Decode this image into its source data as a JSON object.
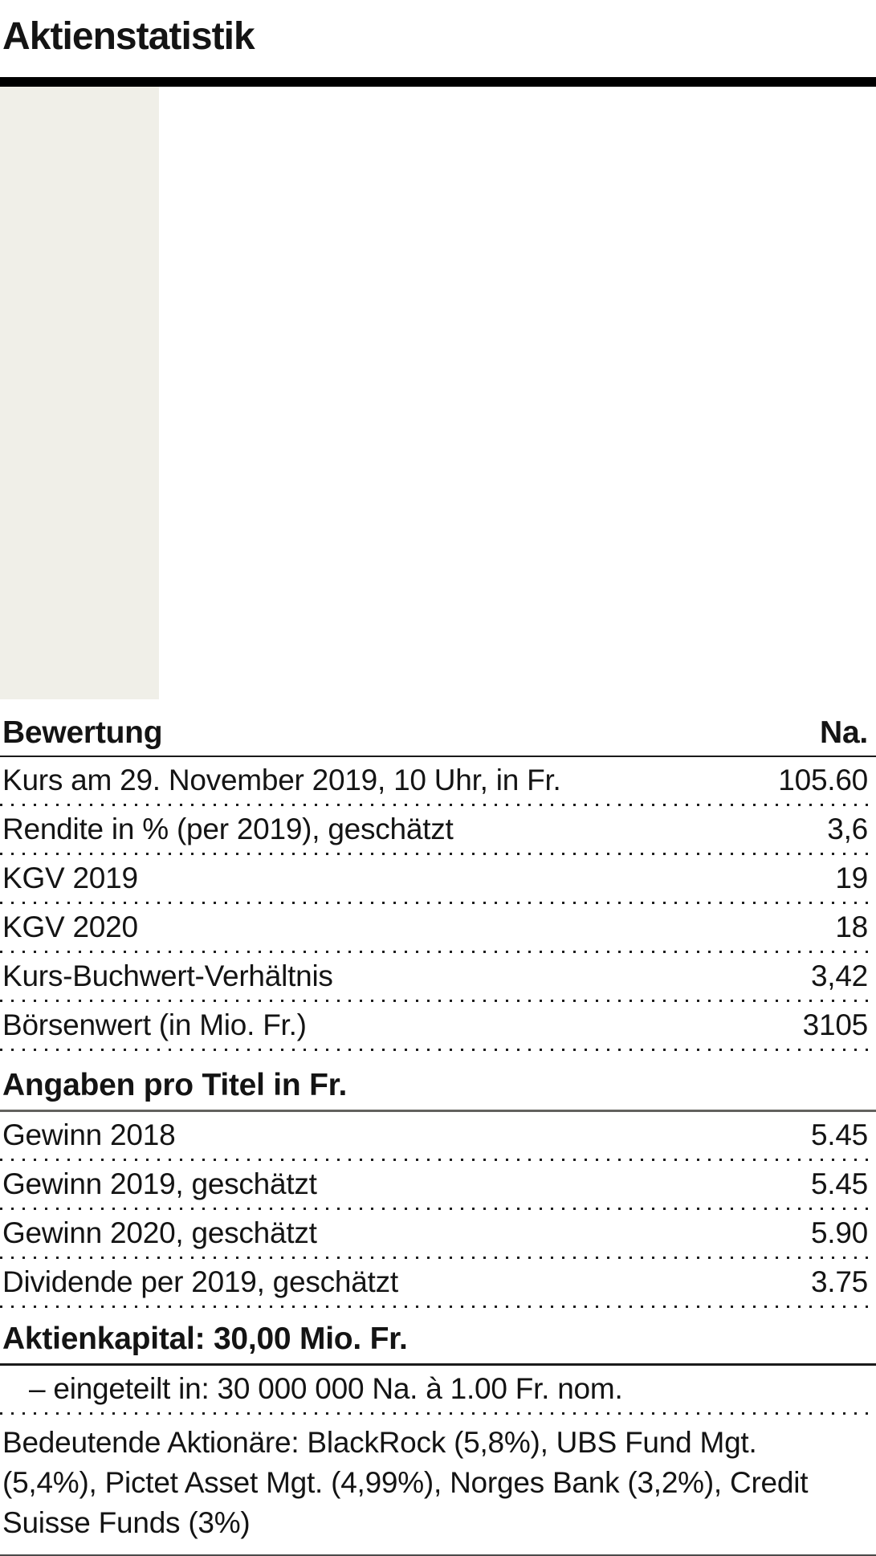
{
  "title": "Aktienstatistik",
  "table": {
    "header": {
      "label": "Bewertung",
      "value_col": "Na."
    },
    "sections": [
      {
        "rows": [
          {
            "label": "Kurs am 29. November 2019, 10 Uhr, in Fr.",
            "value": "105.60"
          },
          {
            "label": "Rendite in % (per 2019), geschätzt",
            "value": "3,6"
          },
          {
            "label": "KGV 2019",
            "value": "19"
          },
          {
            "label": "KGV 2020",
            "value": "18"
          },
          {
            "label": "Kurs-Buchwert-Verhältnis",
            "value": "3,42"
          },
          {
            "label": "Börsenwert (in Mio. Fr.)",
            "value": "3105"
          }
        ]
      },
      {
        "heading": "Angaben pro Titel in Fr.",
        "rows": [
          {
            "label": "Gewinn 2018",
            "value": "5.45"
          },
          {
            "label": "Gewinn 2019, geschätzt",
            "value": "5.45"
          },
          {
            "label": "Gewinn 2020, geschätzt",
            "value": "5.90"
          },
          {
            "label": "Dividende per 2019, geschätzt",
            "value": "3.75"
          }
        ]
      }
    ],
    "capital": {
      "heading": "Aktienkapital: 30,00 Mio. Fr.",
      "detail": "– eingeteilt in: 30 000 000 Na. à 1.00 Fr. nom."
    },
    "shareholders": {
      "lines": [
        "Bedeutende Aktionäre: BlackRock (5,8%), UBS Fund Mgt.",
        "(5,4%), Pictet Asset Mgt. (4,99%), Norges Bank (3,2%), Credit",
        "Suisse Funds (3%)"
      ]
    }
  },
  "colors": {
    "value_column_bg": "#f0efe8",
    "text": "#141414",
    "thick_rule": "#000000",
    "section_rule": "#63625e"
  }
}
